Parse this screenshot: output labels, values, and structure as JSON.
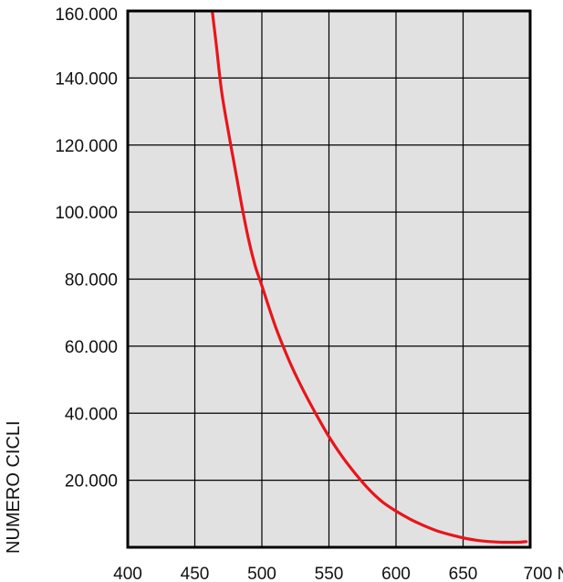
{
  "chart_data": {
    "type": "line",
    "title": "",
    "xlabel": "",
    "ylabel": "NUMERO CICLI",
    "xlim": [
      400,
      700
    ],
    "ylim": [
      0,
      160000
    ],
    "x_ticks": [
      {
        "value": 400,
        "label": "400"
      },
      {
        "value": 450,
        "label": "450"
      },
      {
        "value": 500,
        "label": "500"
      },
      {
        "value": 550,
        "label": "550"
      },
      {
        "value": 600,
        "label": "600"
      },
      {
        "value": 650,
        "label": "650"
      },
      {
        "value": 700,
        "label": "700 N"
      }
    ],
    "y_ticks": [
      {
        "value": 20000,
        "label": "20.000"
      },
      {
        "value": 40000,
        "label": "40.000"
      },
      {
        "value": 60000,
        "label": "60.000"
      },
      {
        "value": 80000,
        "label": "80.000"
      },
      {
        "value": 100000,
        "label": "100.000"
      },
      {
        "value": 120000,
        "label": "120.000"
      },
      {
        "value": 140000,
        "label": "140.000"
      },
      {
        "value": 160000,
        "label": "160.000"
      }
    ],
    "grid": true,
    "series": [
      {
        "color": "#e8151b",
        "x": [
          463,
          466,
          470,
          475,
          480,
          485,
          490,
          495,
          500,
          510,
          520,
          530,
          540,
          550,
          560,
          570,
          580,
          590,
          600,
          610,
          620,
          630,
          640,
          650,
          660,
          670,
          680,
          690,
          697
        ],
        "y": [
          160000,
          150000,
          136000,
          124000,
          113000,
          102000,
          92000,
          84000,
          78000,
          66000,
          56000,
          47500,
          40000,
          33000,
          27000,
          21800,
          17200,
          13500,
          10800,
          8500,
          6600,
          5000,
          3800,
          2800,
          2100,
          1700,
          1500,
          1500,
          1700
        ]
      }
    ]
  },
  "colors": {
    "plot_background": "#e1e1e1",
    "grid": "#000000",
    "frame": "#000000"
  }
}
